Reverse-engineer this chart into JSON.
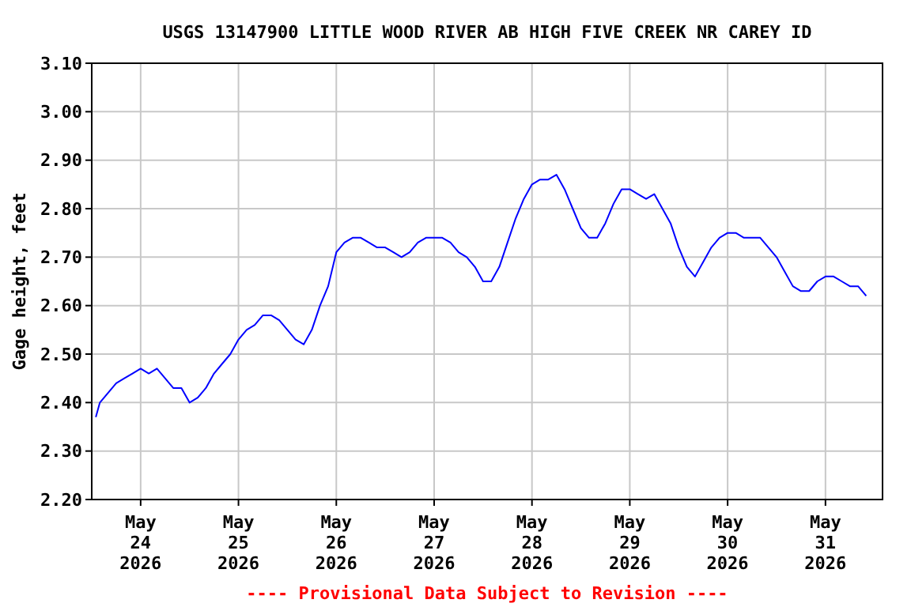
{
  "chart_data": {
    "type": "line",
    "title": "USGS 13147900 LITTLE WOOD RIVER AB HIGH FIVE CREEK NR CAREY ID",
    "ylabel": "Gage height, feet",
    "annotations": [
      "---- Provisional Data Subject to Revision ----"
    ],
    "x": [
      "2026-05-23T13:00",
      "2026-05-23T14:00",
      "2026-05-23T16:00",
      "2026-05-23T18:00",
      "2026-05-23T20:00",
      "2026-05-23T22:00",
      "2026-05-24T00:00",
      "2026-05-24T02:00",
      "2026-05-24T04:00",
      "2026-05-24T06:00",
      "2026-05-24T08:00",
      "2026-05-24T10:00",
      "2026-05-24T12:00",
      "2026-05-24T14:00",
      "2026-05-24T16:00",
      "2026-05-24T18:00",
      "2026-05-24T20:00",
      "2026-05-24T22:00",
      "2026-05-25T00:00",
      "2026-05-25T02:00",
      "2026-05-25T04:00",
      "2026-05-25T06:00",
      "2026-05-25T08:00",
      "2026-05-25T10:00",
      "2026-05-25T12:00",
      "2026-05-25T14:00",
      "2026-05-25T16:00",
      "2026-05-25T18:00",
      "2026-05-25T20:00",
      "2026-05-25T22:00",
      "2026-05-26T00:00",
      "2026-05-26T02:00",
      "2026-05-26T04:00",
      "2026-05-26T06:00",
      "2026-05-26T08:00",
      "2026-05-26T10:00",
      "2026-05-26T12:00",
      "2026-05-26T14:00",
      "2026-05-26T16:00",
      "2026-05-26T18:00",
      "2026-05-26T20:00",
      "2026-05-26T22:00",
      "2026-05-27T00:00",
      "2026-05-27T02:00",
      "2026-05-27T04:00",
      "2026-05-27T06:00",
      "2026-05-27T08:00",
      "2026-05-27T10:00",
      "2026-05-27T12:00",
      "2026-05-27T14:00",
      "2026-05-27T16:00",
      "2026-05-27T18:00",
      "2026-05-27T20:00",
      "2026-05-27T22:00",
      "2026-05-28T00:00",
      "2026-05-28T02:00",
      "2026-05-28T04:00",
      "2026-05-28T06:00",
      "2026-05-28T08:00",
      "2026-05-28T10:00",
      "2026-05-28T12:00",
      "2026-05-28T14:00",
      "2026-05-28T16:00",
      "2026-05-28T18:00",
      "2026-05-28T20:00",
      "2026-05-28T22:00",
      "2026-05-29T00:00",
      "2026-05-29T02:00",
      "2026-05-29T04:00",
      "2026-05-29T06:00",
      "2026-05-29T08:00",
      "2026-05-29T10:00",
      "2026-05-29T12:00",
      "2026-05-29T14:00",
      "2026-05-29T16:00",
      "2026-05-29T18:00",
      "2026-05-29T20:00",
      "2026-05-29T22:00",
      "2026-05-30T00:00",
      "2026-05-30T02:00",
      "2026-05-30T04:00",
      "2026-05-30T06:00",
      "2026-05-30T08:00",
      "2026-05-30T10:00",
      "2026-05-30T12:00",
      "2026-05-30T14:00",
      "2026-05-30T16:00",
      "2026-05-30T18:00",
      "2026-05-30T20:00",
      "2026-05-30T22:00",
      "2026-05-31T00:00",
      "2026-05-31T02:00",
      "2026-05-31T04:00",
      "2026-05-31T06:00",
      "2026-05-31T08:00",
      "2026-05-31T10:00"
    ],
    "series": [
      {
        "color": "#0000ff",
        "values": [
          2.37,
          2.4,
          2.42,
          2.44,
          2.45,
          2.46,
          2.47,
          2.46,
          2.47,
          2.45,
          2.43,
          2.43,
          2.4,
          2.41,
          2.43,
          2.46,
          2.48,
          2.5,
          2.53,
          2.55,
          2.56,
          2.58,
          2.58,
          2.57,
          2.55,
          2.53,
          2.52,
          2.55,
          2.6,
          2.64,
          2.71,
          2.73,
          2.74,
          2.74,
          2.73,
          2.72,
          2.72,
          2.71,
          2.7,
          2.71,
          2.73,
          2.74,
          2.74,
          2.74,
          2.73,
          2.71,
          2.7,
          2.68,
          2.65,
          2.65,
          2.68,
          2.73,
          2.78,
          2.82,
          2.85,
          2.86,
          2.86,
          2.87,
          2.84,
          2.8,
          2.76,
          2.74,
          2.74,
          2.77,
          2.81,
          2.84,
          2.84,
          2.83,
          2.82,
          2.83,
          2.8,
          2.77,
          2.72,
          2.68,
          2.66,
          2.69,
          2.72,
          2.74,
          2.75,
          2.75,
          2.74,
          2.74,
          2.74,
          2.72,
          2.7,
          2.67,
          2.64,
          2.63,
          2.63,
          2.65,
          2.66,
          2.66,
          2.65,
          2.64,
          2.64,
          2.62
        ]
      }
    ],
    "xlim": [
      "2026-05-23T12:00",
      "2026-05-31T14:00"
    ],
    "xticks": [
      {
        "value": "2026-05-24",
        "label": "May\n24\n2026"
      },
      {
        "value": "2026-05-25",
        "label": "May\n25\n2026"
      },
      {
        "value": "2026-05-26",
        "label": "May\n26\n2026"
      },
      {
        "value": "2026-05-27",
        "label": "May\n27\n2026"
      },
      {
        "value": "2026-05-28",
        "label": "May\n28\n2026"
      },
      {
        "value": "2026-05-29",
        "label": "May\n29\n2026"
      },
      {
        "value": "2026-05-30",
        "label": "May\n30\n2026"
      },
      {
        "value": "2026-05-31",
        "label": "May\n31\n2026"
      }
    ],
    "ylim": [
      2.2,
      3.1
    ],
    "yticks": [
      {
        "value": 2.2,
        "label": "2.20"
      },
      {
        "value": 2.3,
        "label": "2.30"
      },
      {
        "value": 2.4,
        "label": "2.40"
      },
      {
        "value": 2.5,
        "label": "2.50"
      },
      {
        "value": 2.6,
        "label": "2.60"
      },
      {
        "value": 2.7,
        "label": "2.70"
      },
      {
        "value": 2.8,
        "label": "2.80"
      },
      {
        "value": 2.9,
        "label": "2.90"
      },
      {
        "value": 3.0,
        "label": "3.00"
      },
      {
        "value": 3.1,
        "label": "3.10"
      }
    ],
    "grid": true,
    "line_style": "solid",
    "marker": "none"
  }
}
